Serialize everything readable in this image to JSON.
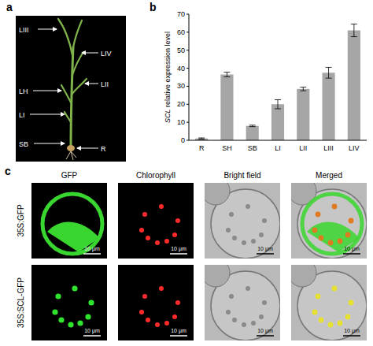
{
  "panel_labels": [
    "a",
    "b",
    "c"
  ],
  "panel_a": {
    "labels": [
      "LIII",
      "LIV",
      "LII",
      "LH",
      "LI",
      "SB",
      "R"
    ]
  },
  "chart_data": {
    "type": "bar",
    "categories": [
      "R",
      "SH",
      "SB",
      "LI",
      "LII",
      "LIII",
      "LIV"
    ],
    "values": [
      1,
      36.5,
      8,
      20,
      28.5,
      37.5,
      61
    ],
    "errors": [
      0.3,
      1.3,
      0.4,
      2.5,
      1,
      3,
      3.5
    ],
    "color": "#a6a6a6",
    "y_label": "SCL relative expression level",
    "ylim": [
      0,
      70
    ],
    "yticks": [
      0,
      10,
      20,
      30,
      40,
      50,
      60,
      70
    ],
    "grid": false
  },
  "panel_c": {
    "columns": [
      "GFP",
      "Chlorophyll",
      "Bright field",
      "Merged"
    ],
    "rows": [
      "35S:GFP",
      "35S:SCL-GFP"
    ],
    "scale_bar": "10 μm"
  }
}
